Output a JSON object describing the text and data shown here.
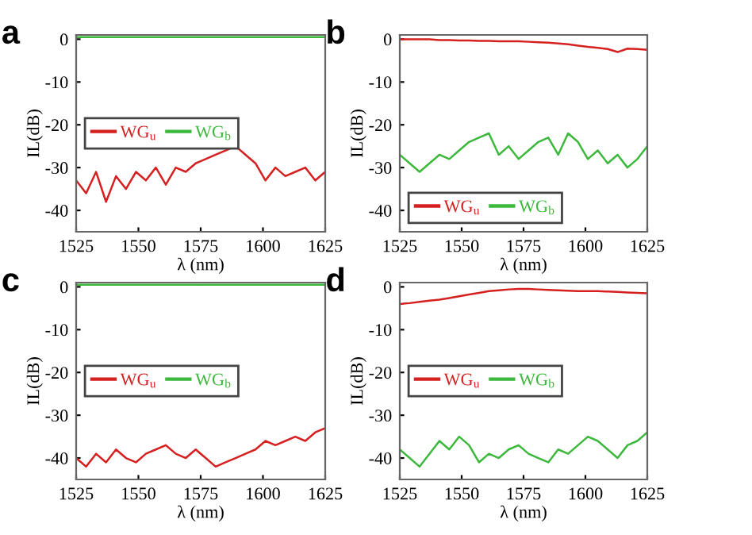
{
  "chart_data": [
    {
      "type": "line",
      "title": "a",
      "xlabel": "λ (nm)",
      "ylabel": "IL(dB)",
      "x": [
        1525,
        1529,
        1533,
        1537,
        1541,
        1545,
        1549,
        1553,
        1557,
        1561,
        1565,
        1569,
        1573,
        1577,
        1581,
        1585,
        1589,
        1593,
        1597,
        1601,
        1605,
        1609,
        1613,
        1617,
        1621,
        1625
      ],
      "xlim": [
        1525,
        1625
      ],
      "xticks": [
        1525,
        1550,
        1575,
        1600,
        1625
      ],
      "ylim": [
        -45,
        1
      ],
      "yticks": [
        0,
        -10,
        -20,
        -30,
        -40
      ],
      "legend": "left",
      "grid": false,
      "series": [
        {
          "name": "WG$_{u}$",
          "color": "#d62020",
          "values": [
            -33,
            -36,
            -31,
            -38,
            -32,
            -35,
            -31,
            -33,
            -30,
            -34,
            -30,
            -31,
            -29,
            -28,
            -27,
            -26,
            -25,
            -27,
            -29,
            -33,
            -30,
            -32,
            -31,
            -30,
            -33,
            -31
          ]
        },
        {
          "name": "WG$_{b}$",
          "color": "#3cb83c",
          "values": [
            0.5,
            0.5,
            0.5,
            0.5,
            0.5,
            0.5,
            0.5,
            0.5,
            0.5,
            0.5,
            0.5,
            0.5,
            0.5,
            0.5,
            0.5,
            0.5,
            0.5,
            0.5,
            0.5,
            0.5,
            0.5,
            0.5,
            0.5,
            0.5,
            0.5,
            0.5
          ]
        }
      ]
    },
    {
      "type": "line",
      "title": "b",
      "xlabel": "λ (nm)",
      "ylabel": "IL(dB)",
      "x": [
        1525,
        1529,
        1533,
        1537,
        1541,
        1545,
        1549,
        1553,
        1557,
        1561,
        1565,
        1569,
        1573,
        1577,
        1581,
        1585,
        1589,
        1593,
        1597,
        1601,
        1605,
        1609,
        1613,
        1617,
        1621,
        1625
      ],
      "xlim": [
        1525,
        1625
      ],
      "xticks": [
        1525,
        1550,
        1575,
        1600,
        1625
      ],
      "ylim": [
        -45,
        1
      ],
      "yticks": [
        0,
        -10,
        -20,
        -30,
        -40
      ],
      "legend": "bottom left",
      "grid": false,
      "series": [
        {
          "name": "WG$_{u}$",
          "color": "#d62020",
          "values": [
            0,
            0,
            0,
            0,
            -0.2,
            -0.2,
            -0.3,
            -0.3,
            -0.4,
            -0.4,
            -0.5,
            -0.5,
            -0.5,
            -0.6,
            -0.7,
            -0.8,
            -1,
            -1.2,
            -1.5,
            -1.8,
            -2,
            -2.3,
            -3,
            -2.2,
            -2.3,
            -2.5
          ]
        },
        {
          "name": "WG$_{b}$",
          "color": "#3cb83c",
          "values": [
            -27,
            -29,
            -31,
            -29,
            -27,
            -28,
            -26,
            -24,
            -23,
            -22,
            -27,
            -25,
            -28,
            -26,
            -24,
            -23,
            -27,
            -22,
            -24,
            -28,
            -26,
            -29,
            -27,
            -30,
            -28,
            -25
          ]
        }
      ]
    },
    {
      "type": "line",
      "title": "c",
      "xlabel": "λ (nm)",
      "ylabel": "IL(dB)",
      "x": [
        1525,
        1529,
        1533,
        1537,
        1541,
        1545,
        1549,
        1553,
        1557,
        1561,
        1565,
        1569,
        1573,
        1577,
        1581,
        1585,
        1589,
        1593,
        1597,
        1601,
        1605,
        1609,
        1613,
        1617,
        1621,
        1625
      ],
      "xlim": [
        1525,
        1625
      ],
      "xticks": [
        1525,
        1550,
        1575,
        1600,
        1625
      ],
      "ylim": [
        -45,
        1
      ],
      "yticks": [
        0,
        -10,
        -20,
        -30,
        -40
      ],
      "legend": "left",
      "grid": false,
      "series": [
        {
          "name": "WG$_{u}$",
          "color": "#d62020",
          "values": [
            -40,
            -42,
            -39,
            -41,
            -38,
            -40,
            -41,
            -39,
            -38,
            -37,
            -39,
            -40,
            -38,
            -40,
            -42,
            -41,
            -40,
            -39,
            -38,
            -36,
            -37,
            -36,
            -35,
            -36,
            -34,
            -33
          ]
        },
        {
          "name": "WG$_{b}$",
          "color": "#3cb83c",
          "values": [
            0.5,
            0.5,
            0.5,
            0.5,
            0.5,
            0.5,
            0.5,
            0.5,
            0.5,
            0.5,
            0.5,
            0.5,
            0.5,
            0.5,
            0.5,
            0.5,
            0.5,
            0.5,
            0.5,
            0.5,
            0.5,
            0.5,
            0.5,
            0.5,
            0.5,
            0.5
          ]
        }
      ]
    },
    {
      "type": "line",
      "title": "d",
      "xlabel": "λ (nm)",
      "ylabel": "IL(dB)",
      "x": [
        1525,
        1529,
        1533,
        1537,
        1541,
        1545,
        1549,
        1553,
        1557,
        1561,
        1565,
        1569,
        1573,
        1577,
        1581,
        1585,
        1589,
        1593,
        1597,
        1601,
        1605,
        1609,
        1613,
        1617,
        1621,
        1625
      ],
      "xlim": [
        1525,
        1625
      ],
      "xticks": [
        1525,
        1550,
        1575,
        1600,
        1625
      ],
      "ylim": [
        -45,
        1
      ],
      "yticks": [
        0,
        -10,
        -20,
        -30,
        -40
      ],
      "legend": "left",
      "grid": false,
      "series": [
        {
          "name": "WG$_{u}$",
          "color": "#d62020",
          "values": [
            -4,
            -3.8,
            -3.5,
            -3.2,
            -3,
            -2.6,
            -2.2,
            -1.8,
            -1.4,
            -1,
            -0.8,
            -0.6,
            -0.5,
            -0.5,
            -0.6,
            -0.7,
            -0.8,
            -0.9,
            -1,
            -1,
            -1,
            -1.1,
            -1.2,
            -1.3,
            -1.4,
            -1.5
          ]
        },
        {
          "name": "WG$_{b}$",
          "color": "#3cb83c",
          "values": [
            -38,
            -40,
            -42,
            -39,
            -36,
            -38,
            -35,
            -37,
            -41,
            -39,
            -40,
            -38,
            -37,
            -39,
            -40,
            -41,
            -38,
            -39,
            -37,
            -35,
            -36,
            -38,
            -40,
            -37,
            -36,
            -34
          ]
        }
      ]
    }
  ]
}
